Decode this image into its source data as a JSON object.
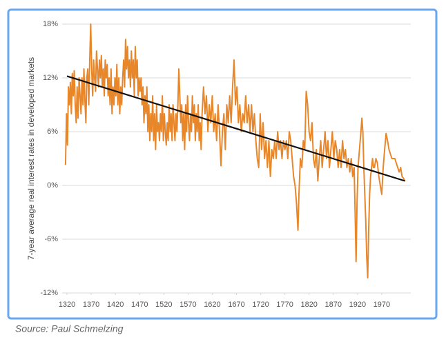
{
  "chart_data": {
    "type": "line",
    "y_label": "7-year average real interest rates in developed markets",
    "source": "Source: Paul Schmelzing",
    "grid": true,
    "xlim": [
      1310,
      2030
    ],
    "ylim": [
      -12,
      18
    ],
    "xticks": [
      1320,
      1370,
      1420,
      1470,
      1520,
      1570,
      1620,
      1670,
      1720,
      1770,
      1820,
      1870,
      1920,
      1970
    ],
    "yticks": [
      {
        "value": -12,
        "label": "-12%"
      },
      {
        "value": -6,
        "label": "-6%"
      },
      {
        "value": 0,
        "label": "0%"
      },
      {
        "value": 6,
        "label": "6%"
      },
      {
        "value": 12,
        "label": "12%"
      },
      {
        "value": 18,
        "label": "18%"
      }
    ],
    "series": [
      {
        "color": "#e8862a",
        "x": [
          1317,
          1319,
          1321,
          1323,
          1325,
          1327,
          1329,
          1331,
          1333,
          1335,
          1337,
          1339,
          1341,
          1343,
          1345,
          1347,
          1349,
          1351,
          1353,
          1355,
          1357,
          1359,
          1361,
          1363,
          1365,
          1367,
          1369,
          1371,
          1373,
          1375,
          1377,
          1379,
          1381,
          1383,
          1385,
          1387,
          1389,
          1391,
          1393,
          1395,
          1397,
          1399,
          1401,
          1403,
          1405,
          1407,
          1409,
          1411,
          1413,
          1415,
          1417,
          1419,
          1421,
          1423,
          1425,
          1427,
          1429,
          1431,
          1433,
          1435,
          1437,
          1439,
          1441,
          1443,
          1445,
          1447,
          1449,
          1451,
          1453,
          1455,
          1457,
          1459,
          1461,
          1463,
          1465,
          1467,
          1469,
          1471,
          1473,
          1475,
          1477,
          1479,
          1481,
          1483,
          1485,
          1487,
          1489,
          1491,
          1493,
          1495,
          1497,
          1499,
          1501,
          1503,
          1505,
          1507,
          1509,
          1511,
          1513,
          1515,
          1517,
          1519,
          1521,
          1523,
          1525,
          1527,
          1529,
          1531,
          1533,
          1535,
          1537,
          1539,
          1541,
          1543,
          1545,
          1547,
          1549,
          1551,
          1553,
          1555,
          1557,
          1559,
          1561,
          1563,
          1565,
          1567,
          1569,
          1571,
          1573,
          1575,
          1577,
          1579,
          1581,
          1583,
          1585,
          1587,
          1589,
          1591,
          1593,
          1595,
          1597,
          1599,
          1602,
          1605,
          1608,
          1611,
          1614,
          1617,
          1620,
          1623,
          1626,
          1629,
          1632,
          1635,
          1638,
          1641,
          1644,
          1647,
          1650,
          1653,
          1656,
          1659,
          1662,
          1665,
          1668,
          1671,
          1674,
          1677,
          1680,
          1683,
          1686,
          1689,
          1692,
          1695,
          1698,
          1701,
          1704,
          1707,
          1710,
          1713,
          1716,
          1719,
          1722,
          1725,
          1728,
          1731,
          1734,
          1737,
          1740,
          1743,
          1746,
          1749,
          1752,
          1755,
          1758,
          1761,
          1764,
          1767,
          1770,
          1773,
          1776,
          1779,
          1782,
          1785,
          1788,
          1791,
          1794,
          1797,
          1799,
          1802,
          1805,
          1808,
          1811,
          1814,
          1817,
          1820,
          1823,
          1826,
          1829,
          1832,
          1835,
          1838,
          1841,
          1844,
          1847,
          1850,
          1853,
          1856,
          1859,
          1862,
          1865,
          1868,
          1871,
          1874,
          1877,
          1880,
          1883,
          1886,
          1889,
          1892,
          1895,
          1898,
          1901,
          1904,
          1907,
          1910,
          1913,
          1915,
          1917,
          1919,
          1921,
          1924,
          1927,
          1929,
          1931,
          1933,
          1935,
          1937,
          1939,
          1941,
          1943,
          1945,
          1947,
          1949,
          1951,
          1953,
          1955,
          1958,
          1961,
          1964,
          1967,
          1970,
          1973,
          1976,
          1979,
          1982,
          1985,
          1988,
          1991,
          1994,
          1997,
          2000,
          2003,
          2006,
          2009,
          2012,
          2015,
          2018
        ],
        "values": [
          2.3,
          8,
          4.5,
          11,
          9,
          11.5,
          8,
          12.5,
          10,
          12.8,
          9,
          7,
          11,
          7.5,
          12,
          10,
          8,
          12,
          9,
          13,
          9.5,
          7,
          12,
          13,
          9,
          14,
          18,
          13,
          10,
          14,
          12,
          10.5,
          15,
          13,
          11,
          14,
          12,
          14.5,
          11,
          13,
          10,
          14,
          12,
          13.5,
          10,
          12,
          9,
          13,
          8,
          11,
          9,
          12,
          10,
          13.5,
          9,
          12,
          8,
          11,
          9,
          12,
          14,
          11,
          16.3,
          13,
          15.5,
          12,
          14,
          11,
          15,
          12,
          14,
          10,
          15.5,
          12,
          14,
          10,
          12,
          10.5,
          12,
          9,
          11,
          7,
          10,
          8,
          11,
          6,
          9,
          5,
          8,
          6,
          10,
          5,
          8,
          4,
          9,
          6,
          7,
          5,
          8,
          6,
          10,
          5,
          8,
          6,
          4.5,
          7,
          5,
          9,
          6,
          8,
          5,
          9,
          7,
          5,
          8,
          6,
          9,
          13,
          10,
          7,
          9,
          5,
          8,
          4,
          9,
          6,
          10,
          7,
          5,
          8,
          6,
          10,
          7,
          9,
          5,
          8,
          6,
          9,
          5,
          7,
          4,
          8,
          11,
          8,
          10,
          6,
          9,
          7,
          10,
          6,
          8,
          5,
          9,
          6,
          2.2,
          6,
          8,
          4,
          9,
          7,
          10,
          7,
          11,
          14,
          9,
          11,
          7,
          9,
          6,
          8,
          7,
          10,
          7,
          9,
          6,
          9,
          6,
          8,
          5,
          3,
          2,
          8,
          4,
          7,
          3,
          5,
          2,
          5,
          1,
          4,
          3,
          5,
          3,
          6,
          4,
          5,
          3,
          5,
          4,
          5,
          3,
          6,
          5,
          3,
          1,
          0,
          -2,
          -5,
          -1,
          3,
          2,
          5,
          4,
          10.5,
          9,
          6,
          5,
          7,
          3,
          2,
          4,
          0.5,
          3,
          5,
          2,
          4,
          6,
          3,
          5,
          2,
          4,
          6,
          3,
          5,
          4,
          2,
          4,
          2,
          5,
          3,
          4,
          2,
          3,
          1.5,
          3,
          1,
          2,
          -3,
          -8.5,
          -2,
          2,
          4,
          6,
          7.5,
          6,
          2,
          -1,
          -4,
          -8,
          -10.3,
          -5,
          -1,
          1,
          2,
          3,
          2,
          2,
          3,
          2.5,
          1,
          0,
          -1,
          2,
          4,
          5.8,
          5,
          4,
          3.5,
          3,
          3,
          3,
          2.5,
          2,
          1.5,
          2,
          1,
          0.8,
          0.5
        ]
      },
      {
        "color": "#111111",
        "x": [
          1320,
          2018
        ],
        "values": [
          12.2,
          0.5
        ]
      }
    ]
  }
}
